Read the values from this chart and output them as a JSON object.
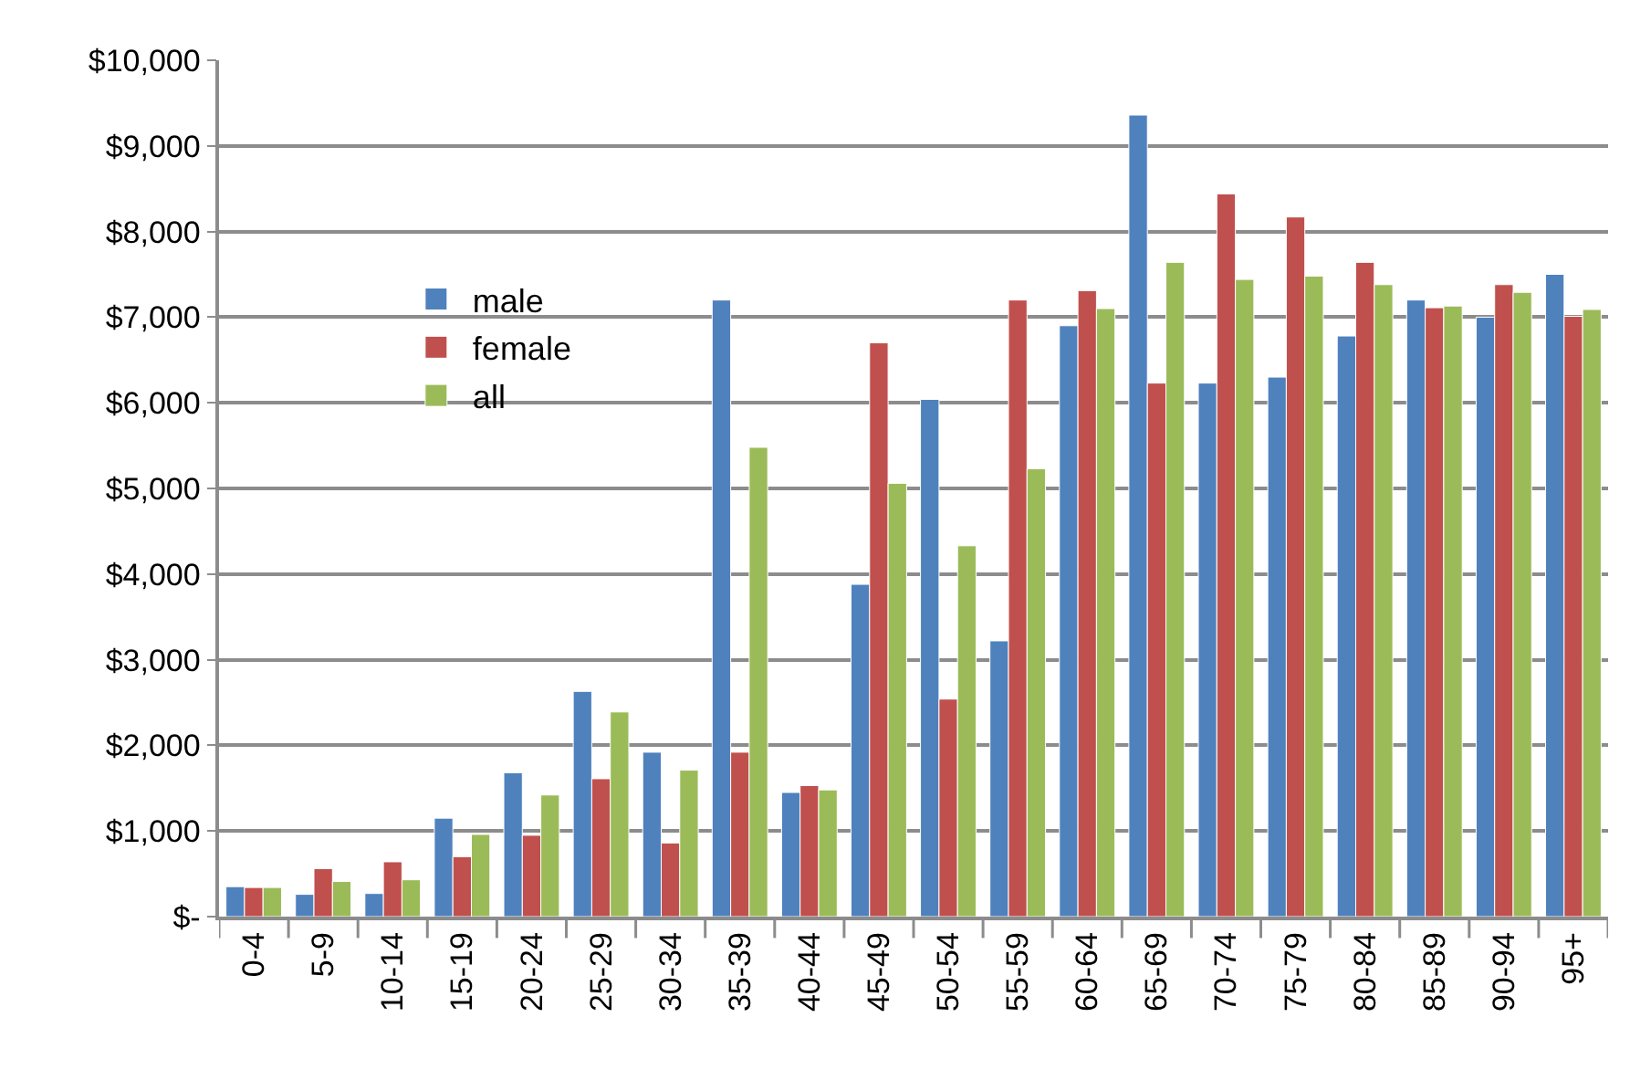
{
  "chart_data": {
    "type": "bar",
    "categories": [
      "0-4",
      "5-9",
      "10-14",
      "15-19",
      "20-24",
      "25-29",
      "30-34",
      "35-39",
      "40-44",
      "45-49",
      "50-54",
      "55-59",
      "60-64",
      "65-69",
      "70-74",
      "75-79",
      "80-84",
      "85-89",
      "90-94",
      "95+"
    ],
    "series": [
      {
        "name": "male",
        "color": "#4f81bd",
        "values": [
          350,
          260,
          270,
          1150,
          1680,
          2630,
          1920,
          7200,
          1450,
          3880,
          6040,
          3220,
          6900,
          9360,
          6230,
          6300,
          6780,
          7200,
          7000,
          7500
        ]
      },
      {
        "name": "female",
        "color": "#c0504d",
        "values": [
          340,
          560,
          640,
          700,
          950,
          1610,
          860,
          1920,
          1530,
          6700,
          2540,
          7200,
          7310,
          6230,
          8440,
          8170,
          7640,
          7110,
          7380,
          7010
        ]
      },
      {
        "name": "all",
        "color": "#9bbb59",
        "values": [
          340,
          410,
          430,
          960,
          1420,
          2390,
          1710,
          5480,
          1480,
          5060,
          4330,
          5230,
          7100,
          7640,
          7440,
          7480,
          7380,
          7130,
          7290,
          7090
        ]
      }
    ],
    "ylim": [
      0,
      10000
    ],
    "yticks": [
      {
        "value": 0,
        "label": "$-"
      },
      {
        "value": 1000,
        "label": "$1,000"
      },
      {
        "value": 2000,
        "label": "$2,000"
      },
      {
        "value": 3000,
        "label": "$3,000"
      },
      {
        "value": 4000,
        "label": "$4,000"
      },
      {
        "value": 5000,
        "label": "$5,000"
      },
      {
        "value": 6000,
        "label": "$6,000"
      },
      {
        "value": 7000,
        "label": "$7,000"
      },
      {
        "value": 8000,
        "label": "$8,000"
      },
      {
        "value": 9000,
        "label": "$9,000"
      },
      {
        "value": 10000,
        "label": "$10,000"
      }
    ],
    "grid": "y",
    "legend": "top left"
  }
}
